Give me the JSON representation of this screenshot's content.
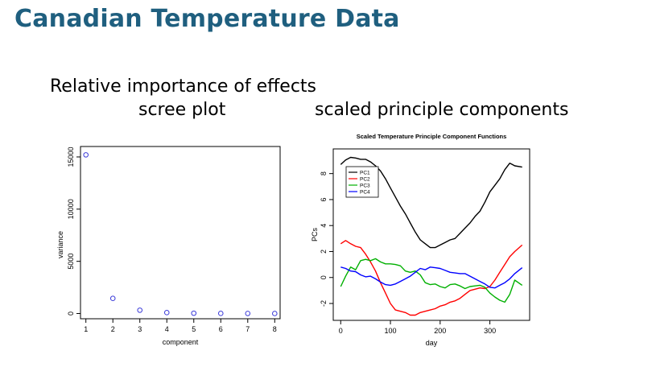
{
  "slide": {
    "title": "Canadian Temperature Data",
    "left_caption_line1": "Relative importance of effects",
    "left_caption_line2": "scree plot",
    "right_caption": "scaled principle components"
  },
  "colors": {
    "title": "#1f5f7f",
    "scree_points": "#3b3bd9",
    "pc1": "#000000",
    "pc2": "#ff0000",
    "pc3": "#00b000",
    "pc4": "#0000ff"
  },
  "chart_data": [
    {
      "type": "scatter",
      "title": "",
      "xlabel": "component",
      "ylabel": "variance",
      "x": [
        1,
        2,
        3,
        4,
        5,
        6,
        7,
        8
      ],
      "y": [
        15200,
        1450,
        320,
        90,
        30,
        15,
        8,
        4
      ],
      "xlim": [
        0.8,
        8.2
      ],
      "ylim": [
        -500,
        16000
      ],
      "xticks": [
        1,
        2,
        3,
        4,
        5,
        6,
        7,
        8
      ],
      "yticks": [
        0,
        5000,
        10000,
        15000
      ]
    },
    {
      "type": "line",
      "title": "Scaled Temperature Principle Component Functions",
      "xlabel": "day",
      "ylabel": "PCs",
      "xlim": [
        -15,
        380
      ],
      "ylim": [
        -3.3,
        9.9
      ],
      "xticks": [
        0,
        100,
        200,
        300
      ],
      "yticks": [
        -2,
        0,
        2,
        4,
        6,
        8
      ],
      "legend": "top-left",
      "series": [
        {
          "name": "PC1",
          "x": [
            0,
            10,
            20,
            30,
            40,
            50,
            60,
            70,
            80,
            90,
            100,
            110,
            120,
            130,
            140,
            150,
            160,
            170,
            180,
            190,
            200,
            210,
            220,
            230,
            240,
            250,
            260,
            270,
            280,
            290,
            300,
            310,
            320,
            330,
            340,
            350,
            365
          ],
          "values": [
            8.7,
            9.05,
            9.25,
            9.2,
            9.1,
            9.1,
            8.9,
            8.6,
            8.2,
            7.6,
            6.9,
            6.2,
            5.5,
            4.9,
            4.2,
            3.5,
            2.9,
            2.6,
            2.3,
            2.3,
            2.5,
            2.7,
            2.9,
            3.0,
            3.4,
            3.8,
            4.2,
            4.7,
            5.1,
            5.8,
            6.6,
            7.1,
            7.6,
            8.3,
            8.8,
            8.6,
            8.5
          ]
        },
        {
          "name": "PC2",
          "x": [
            0,
            10,
            20,
            30,
            40,
            50,
            60,
            70,
            80,
            90,
            100,
            110,
            120,
            130,
            140,
            150,
            160,
            170,
            180,
            190,
            200,
            210,
            220,
            230,
            240,
            250,
            260,
            270,
            280,
            290,
            300,
            310,
            320,
            330,
            340,
            350,
            365
          ],
          "values": [
            2.6,
            2.85,
            2.6,
            2.4,
            2.3,
            1.8,
            1.2,
            0.5,
            -0.4,
            -1.2,
            -2.0,
            -2.5,
            -2.6,
            -2.7,
            -2.9,
            -2.9,
            -2.7,
            -2.6,
            -2.5,
            -2.4,
            -2.2,
            -2.1,
            -1.9,
            -1.8,
            -1.6,
            -1.3,
            -1.0,
            -0.9,
            -0.8,
            -0.85,
            -0.7,
            -0.2,
            0.4,
            1.0,
            1.6,
            2.0,
            2.5
          ]
        },
        {
          "name": "PC3",
          "x": [
            0,
            10,
            20,
            30,
            40,
            50,
            60,
            70,
            80,
            90,
            100,
            110,
            120,
            130,
            140,
            150,
            160,
            170,
            180,
            190,
            200,
            210,
            220,
            230,
            240,
            250,
            260,
            270,
            280,
            290,
            300,
            310,
            320,
            330,
            340,
            350,
            365
          ],
          "values": [
            -0.7,
            0.1,
            0.8,
            0.6,
            1.3,
            1.4,
            1.3,
            1.45,
            1.2,
            1.05,
            1.05,
            1.0,
            0.9,
            0.5,
            0.4,
            0.5,
            0.2,
            -0.4,
            -0.55,
            -0.5,
            -0.7,
            -0.8,
            -0.55,
            -0.5,
            -0.65,
            -0.85,
            -0.7,
            -0.65,
            -0.6,
            -0.75,
            -1.2,
            -1.5,
            -1.75,
            -1.9,
            -1.3,
            -0.2,
            -0.6
          ]
        },
        {
          "name": "PC4",
          "x": [
            0,
            10,
            20,
            30,
            40,
            50,
            60,
            70,
            80,
            90,
            100,
            110,
            120,
            130,
            140,
            150,
            160,
            170,
            180,
            190,
            200,
            210,
            220,
            230,
            240,
            250,
            260,
            270,
            280,
            290,
            300,
            310,
            320,
            330,
            340,
            350,
            365
          ],
          "values": [
            0.8,
            0.7,
            0.5,
            0.45,
            0.2,
            0.05,
            0.1,
            -0.1,
            -0.35,
            -0.55,
            -0.6,
            -0.5,
            -0.3,
            -0.1,
            0.1,
            0.4,
            0.7,
            0.6,
            0.8,
            0.75,
            0.7,
            0.55,
            0.4,
            0.35,
            0.3,
            0.3,
            0.1,
            -0.1,
            -0.3,
            -0.5,
            -0.75,
            -0.8,
            -0.6,
            -0.4,
            -0.1,
            0.3,
            0.75
          ]
        }
      ]
    }
  ]
}
